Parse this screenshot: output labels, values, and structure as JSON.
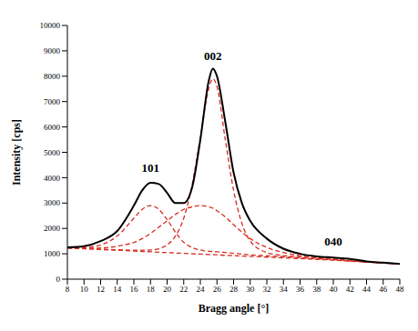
{
  "chart_data": {
    "type": "line",
    "xlabel": "Bragg angle [°]",
    "ylabel": "Intensity [cps]",
    "x": [
      8,
      10,
      12,
      14,
      16,
      17,
      18,
      19,
      20,
      21,
      22,
      23,
      24,
      25,
      25.5,
      26,
      27,
      28,
      29,
      30,
      32,
      34,
      36,
      38,
      40,
      42,
      44,
      46,
      48
    ],
    "xlim": [
      8,
      48
    ],
    "xticks": [
      8,
      10,
      12,
      14,
      16,
      18,
      20,
      22,
      24,
      26,
      28,
      30,
      32,
      34,
      36,
      38,
      40,
      42,
      44,
      46,
      48
    ],
    "ylim": [
      0,
      10000
    ],
    "yticks": [
      0,
      1000,
      2000,
      3000,
      4000,
      5000,
      6000,
      7000,
      8000,
      9000,
      10000
    ],
    "grid": false,
    "series": [
      {
        "color": "#000000",
        "line_style": "solid",
        "values": [
          1250,
          1300,
          1500,
          1900,
          2900,
          3500,
          3800,
          3750,
          3400,
          3000,
          3000,
          3600,
          5500,
          7800,
          8300,
          8000,
          6200,
          4200,
          3000,
          2300,
          1600,
          1200,
          1000,
          900,
          850,
          800,
          700,
          650,
          600
        ]
      },
      {
        "color": "#d62c1f",
        "line_style": "dashed",
        "values": [
          1230,
          1250,
          1350,
          1700,
          2400,
          2750,
          2900,
          2750,
          2350,
          1850,
          1450,
          1250,
          1150,
          1100,
          1090,
          1080,
          1050,
          1020,
          990,
          960,
          920,
          880,
          840,
          800,
          760,
          720,
          680,
          640,
          600
        ]
      },
      {
        "color": "#d62c1f",
        "line_style": "dashed",
        "values": [
          1230,
          1220,
          1230,
          1300,
          1450,
          1600,
          1800,
          2050,
          2300,
          2550,
          2750,
          2850,
          2900,
          2850,
          2800,
          2700,
          2450,
          2150,
          1850,
          1600,
          1250,
          1050,
          930,
          850,
          790,
          730,
          680,
          640,
          600
        ]
      },
      {
        "color": "#d62c1f",
        "line_style": "dashed",
        "values": [
          1230,
          1210,
          1180,
          1160,
          1140,
          1140,
          1150,
          1200,
          1350,
          1700,
          2400,
          3700,
          5600,
          7500,
          7900,
          7600,
          5500,
          3500,
          2200,
          1500,
          1050,
          930,
          880,
          840,
          790,
          730,
          680,
          640,
          600
        ]
      },
      {
        "color": "#d62c1f",
        "line_style": "dashed",
        "values": [
          1230,
          1200,
          1170,
          1140,
          1110,
          1090,
          1080,
          1060,
          1050,
          1030,
          1020,
          1000,
          990,
          970,
          965,
          960,
          940,
          930,
          910,
          900,
          870,
          840,
          810,
          780,
          750,
          710,
          680,
          640,
          600
        ]
      }
    ],
    "annotations": [
      {
        "text": "101",
        "x": 18,
        "y": 4400
      },
      {
        "text": "002",
        "x": 25.5,
        "y": 8800
      },
      {
        "text": "040",
        "x": 40,
        "y": 1500
      }
    ]
  }
}
